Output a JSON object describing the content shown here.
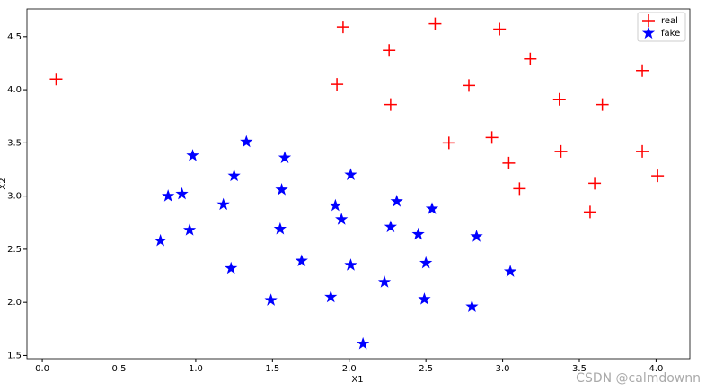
{
  "chart_data": {
    "type": "scatter",
    "xlabel": "X1",
    "ylabel": "X2",
    "xlim": [
      -0.1,
      4.22
    ],
    "ylim": [
      1.47,
      4.76
    ],
    "xticks": [
      {
        "value": 0,
        "label": "0.0"
      },
      0.5,
      {
        "value": 1,
        "label": "1.0"
      },
      1.5,
      {
        "value": 2,
        "label": "2.0"
      },
      2.5,
      {
        "value": 3,
        "label": "3.0"
      },
      3.5,
      {
        "value": 4,
        "label": "4.0"
      }
    ],
    "yticks": [
      1.5,
      {
        "value": 2,
        "label": "2.0"
      },
      2.5,
      {
        "value": 3,
        "label": "3.0"
      },
      3.5,
      {
        "value": 4,
        "label": "4.0"
      },
      4.5
    ],
    "legend": "upper right",
    "series": [
      {
        "name": "real",
        "color": "#ff0000",
        "marker": "plus",
        "x": [
          0.09,
          1.96,
          2.26,
          2.56,
          2.98,
          1.92,
          3.18,
          2.78,
          3.91,
          3.37,
          2.27,
          3.65,
          2.65,
          2.93,
          3.04,
          3.38,
          3.91,
          3.11,
          3.6,
          4.01,
          3.57
        ],
        "values": [
          4.1,
          4.59,
          4.37,
          4.62,
          4.57,
          4.05,
          4.29,
          4.04,
          4.18,
          3.91,
          3.86,
          3.86,
          3.5,
          3.55,
          3.31,
          3.42,
          3.42,
          3.07,
          3.12,
          3.19,
          2.85
        ]
      },
      {
        "name": "fake",
        "color": "#0000ff",
        "marker": "star",
        "x": [
          1.33,
          0.98,
          1.58,
          1.25,
          2.01,
          0.82,
          0.91,
          1.56,
          1.18,
          1.91,
          2.31,
          2.54,
          1.95,
          0.96,
          1.55,
          2.27,
          0.77,
          2.45,
          2.83,
          1.69,
          2.01,
          2.5,
          1.23,
          3.05,
          2.23,
          1.49,
          1.88,
          2.49,
          2.8,
          2.09
        ],
        "values": [
          3.51,
          3.38,
          3.36,
          3.19,
          3.2,
          3.0,
          3.02,
          3.06,
          2.92,
          2.91,
          2.95,
          2.88,
          2.78,
          2.68,
          2.69,
          2.71,
          2.58,
          2.64,
          2.62,
          2.39,
          2.35,
          2.37,
          2.32,
          2.29,
          2.19,
          2.02,
          2.05,
          2.03,
          1.96,
          1.61
        ]
      }
    ]
  },
  "watermark": "CSDN @calmdownn"
}
